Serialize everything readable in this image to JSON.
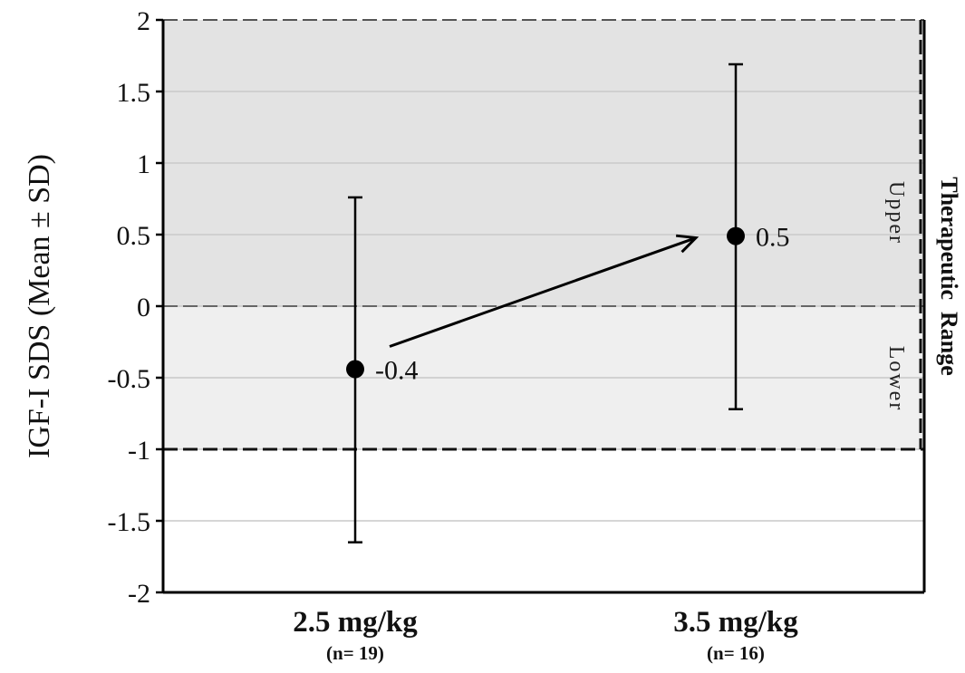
{
  "chart_data": {
    "type": "scatter",
    "title": "",
    "xlabel": "",
    "ylabel": "IGF-I SDS (Mean ± SD)",
    "ylim": [
      -2,
      2
    ],
    "yticks": [
      2,
      1.5,
      1,
      0.5,
      0,
      -0.5,
      -1,
      -1.5,
      -2
    ],
    "ytick_labels": [
      "2",
      "1.5",
      "1",
      "0.5",
      "0",
      "-0.5",
      "-1",
      "-1.5",
      "-2"
    ],
    "categories": [
      "2.5 mg/kg",
      "3.5 mg/kg"
    ],
    "sample_sizes": [
      "(n= 19)",
      "(n= 16)"
    ],
    "means": [
      -0.44,
      0.49
    ],
    "error_low": [
      -1.65,
      -0.72
    ],
    "error_high": [
      0.76,
      1.69
    ],
    "data_labels": [
      "-0.4",
      "0.5"
    ],
    "grid": true,
    "arrow": {
      "from": "2.5 mg/kg",
      "to": "3.5 mg/kg"
    },
    "bands": [
      {
        "label": "Upper",
        "from": 0,
        "to": 2,
        "color": "#e3e3e3"
      },
      {
        "label": "Lower",
        "from": -1,
        "to": 0,
        "color": "#efefef"
      }
    ],
    "range_label": "Therapeutic  Range"
  }
}
